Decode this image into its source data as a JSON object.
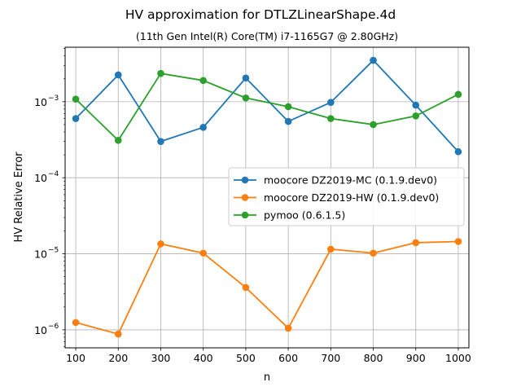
{
  "chart_data": {
    "type": "line",
    "title": "HV approximation for DTLZLinearShape.4d",
    "subtitle": "(11th Gen Intel(R) Core(TM) i7-1165G7 @ 2.80GHz)",
    "xlabel": "n",
    "ylabel": "HV Relative Error",
    "yscale": "log",
    "ylim": [
      5.8e-07,
      0.0052
    ],
    "xlim": [
      75,
      1025
    ],
    "x": [
      100,
      200,
      300,
      400,
      500,
      600,
      700,
      800,
      900,
      1000
    ],
    "xticks": [
      "100",
      "200",
      "300",
      "400",
      "500",
      "600",
      "700",
      "800",
      "900",
      "1000"
    ],
    "yticks": [
      {
        "value": 1e-06,
        "base": "10",
        "exp": "−6"
      },
      {
        "value": 1e-05,
        "base": "10",
        "exp": "−5"
      },
      {
        "value": 0.0001,
        "base": "10",
        "exp": "−4"
      },
      {
        "value": 0.001,
        "base": "10",
        "exp": "−3"
      }
    ],
    "grid": true,
    "legend_position": "center-right",
    "series": [
      {
        "name": "moocore DZ2019-MC (0.1.9.dev0)",
        "color": "#1f77b4",
        "values": [
          0.0006,
          0.00225,
          0.0003,
          0.00046,
          0.00205,
          0.00055,
          0.00098,
          0.0035,
          0.0009,
          0.00022
        ]
      },
      {
        "name": "moocore DZ2019-HW (0.1.9.dev0)",
        "color": "#ff7f0e",
        "values": [
          1.25e-06,
          8.8e-07,
          1.35e-05,
          1.02e-05,
          3.6e-06,
          1.05e-06,
          1.15e-05,
          1.02e-05,
          1.4e-05,
          1.45e-05
        ]
      },
      {
        "name": "pymoo (0.6.1.5)",
        "color": "#2ca02c",
        "values": [
          0.00108,
          0.00031,
          0.00235,
          0.0019,
          0.00112,
          0.00086,
          0.0006,
          0.0005,
          0.00065,
          0.00125
        ]
      }
    ]
  }
}
